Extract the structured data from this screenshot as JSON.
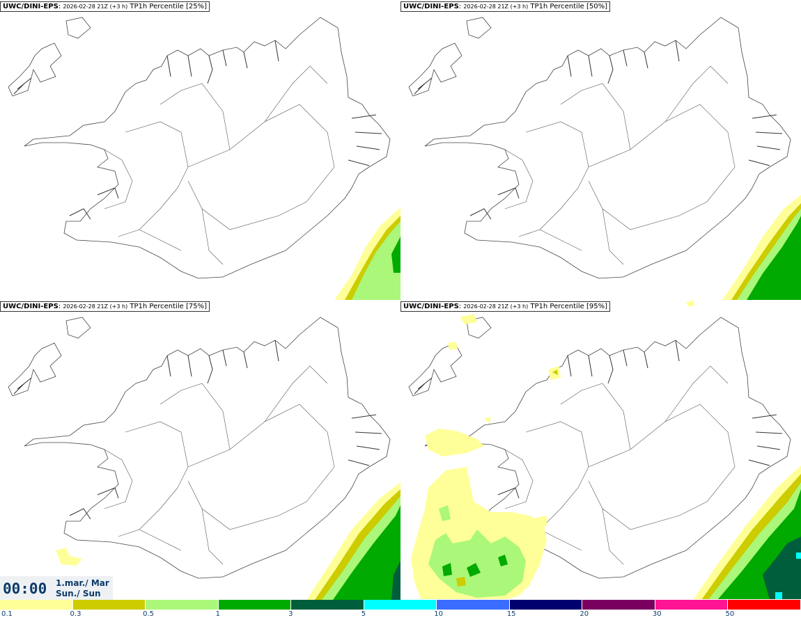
{
  "panels": [
    {
      "model": "UWC/DINI-EPS",
      "run": "2026-02-28 21Z (+3 h)",
      "product": "TP1h Percentile [25%]"
    },
    {
      "model": "UWC/DINI-EPS",
      "run": "2026-02-28 21Z (+3 h)",
      "product": "TP1h Percentile [50%]"
    },
    {
      "model": "UWC/DINI-EPS",
      "run": "2026-02-28 21Z (+3 h)",
      "product": "TP1h Percentile [75%]"
    },
    {
      "model": "UWC/DINI-EPS",
      "run": "2026-02-28 21Z (+3 h)",
      "product": "TP1h Percentile [95%]"
    }
  ],
  "valid_time": {
    "clock": "00:00",
    "date_line": "1.mar./ Mar",
    "day_line": "Sun./ Sun"
  },
  "legend": {
    "labels": [
      "0.1",
      "0.3",
      "0.5",
      "1",
      "3",
      "5",
      "10",
      "15",
      "20",
      "30",
      "50"
    ],
    "colors": [
      "#ffff99",
      "#cccc00",
      "#aaf77a",
      "#00aa00",
      "#005e3c",
      "#00ffff",
      "#3a6cff",
      "#00006e",
      "#7a0060",
      "#ff1493",
      "#ff0000"
    ]
  }
}
